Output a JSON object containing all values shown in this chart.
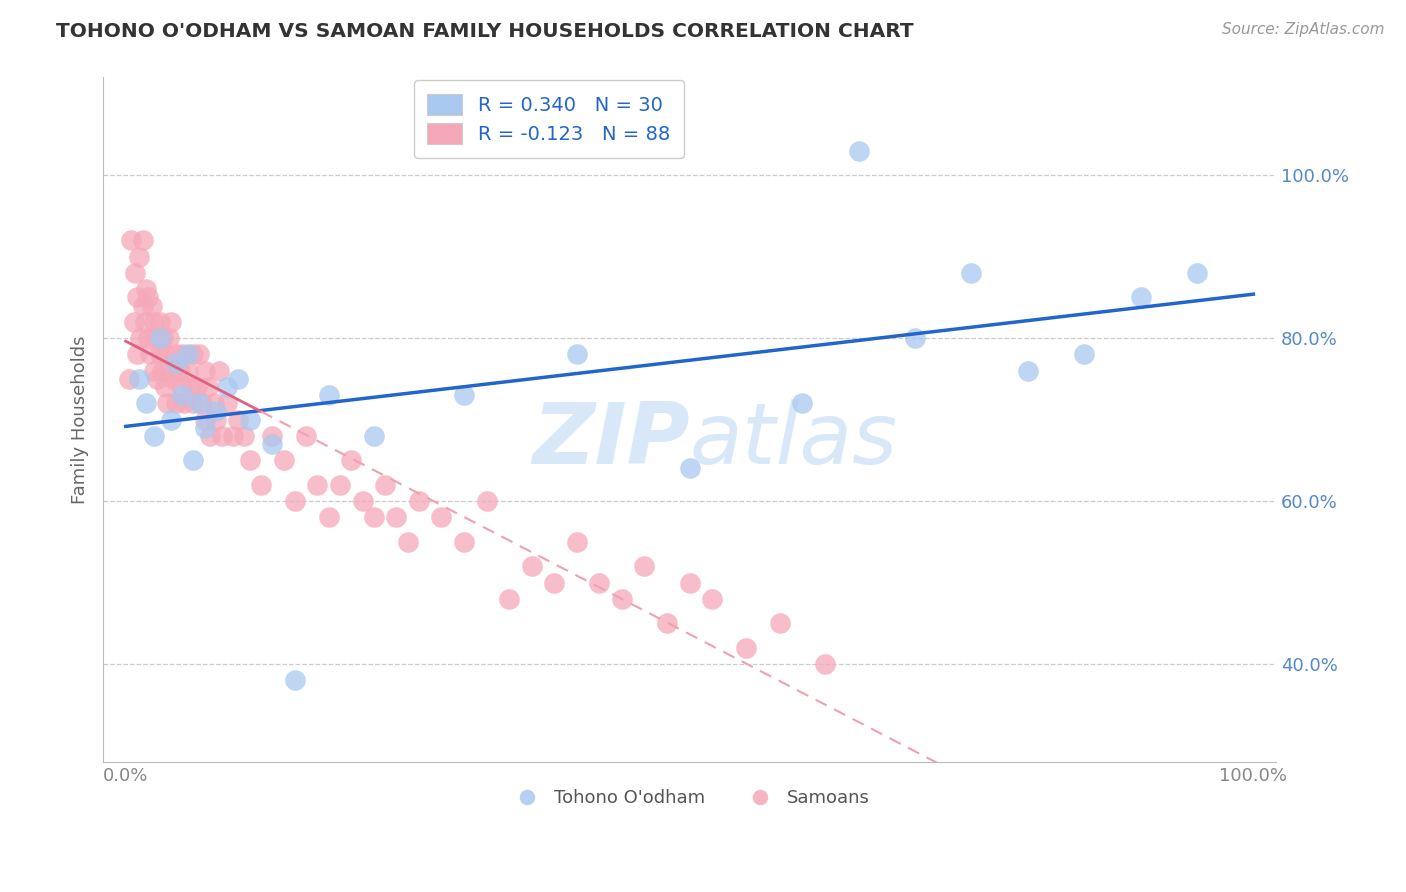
{
  "title": "TOHONO O'ODHAM VS SAMOAN FAMILY HOUSEHOLDS CORRELATION CHART",
  "source": "Source: ZipAtlas.com",
  "ylabel": "Family Households",
  "legend_blue_label": "R = 0.340   N = 30",
  "legend_pink_label": "R = -0.123   N = 88",
  "blue_scatter_color": "#a8c8f0",
  "pink_scatter_color": "#f5a8b8",
  "blue_line_color": "#2266cc",
  "pink_line_color": "#e06080",
  "pink_dashed_color": "#f0a0b0",
  "ytick_color": "#5588cc",
  "xtick_color": "#888888",
  "grid_color": "#cccccc",
  "watermark_color": "#d8e8f8",
  "tohono_x": [
    1.2,
    1.8,
    2.5,
    3.0,
    4.0,
    4.5,
    5.0,
    5.5,
    6.0,
    6.5,
    7.0,
    8.0,
    9.0,
    10.0,
    11.0,
    13.0,
    15.0,
    18.0,
    22.0,
    30.0,
    40.0,
    50.0,
    60.0,
    65.0,
    70.0,
    75.0,
    80.0,
    85.0,
    90.0,
    95.0
  ],
  "tohono_y": [
    75.0,
    72.0,
    68.0,
    80.0,
    70.0,
    77.0,
    73.0,
    78.0,
    65.0,
    72.0,
    69.0,
    71.0,
    74.0,
    75.0,
    70.0,
    67.0,
    38.0,
    73.0,
    68.0,
    73.0,
    78.0,
    64.0,
    72.0,
    103.0,
    80.0,
    88.0,
    76.0,
    78.0,
    85.0,
    88.0
  ],
  "samoan_x": [
    0.3,
    0.5,
    0.7,
    0.8,
    1.0,
    1.0,
    1.2,
    1.3,
    1.5,
    1.5,
    1.7,
    1.8,
    2.0,
    2.0,
    2.2,
    2.3,
    2.5,
    2.5,
    2.7,
    2.8,
    3.0,
    3.0,
    3.2,
    3.3,
    3.5,
    3.5,
    3.7,
    3.8,
    4.0,
    4.0,
    4.2,
    4.5,
    4.5,
    4.8,
    5.0,
    5.0,
    5.2,
    5.5,
    5.8,
    6.0,
    6.0,
    6.3,
    6.5,
    6.8,
    7.0,
    7.0,
    7.3,
    7.5,
    7.8,
    8.0,
    8.3,
    8.5,
    9.0,
    9.5,
    10.0,
    10.5,
    11.0,
    12.0,
    13.0,
    14.0,
    15.0,
    16.0,
    17.0,
    18.0,
    19.0,
    20.0,
    21.0,
    22.0,
    23.0,
    24.0,
    25.0,
    26.0,
    28.0,
    30.0,
    32.0,
    34.0,
    36.0,
    38.0,
    40.0,
    42.0,
    44.0,
    46.0,
    48.0,
    50.0,
    52.0,
    55.0,
    58.0,
    62.0
  ],
  "samoan_y": [
    75.0,
    92.0,
    82.0,
    88.0,
    78.0,
    85.0,
    90.0,
    80.0,
    84.0,
    92.0,
    82.0,
    86.0,
    80.0,
    85.0,
    78.0,
    84.0,
    76.0,
    82.0,
    80.0,
    75.0,
    78.0,
    82.0,
    76.0,
    80.0,
    74.0,
    78.0,
    72.0,
    80.0,
    76.0,
    82.0,
    75.0,
    78.0,
    72.0,
    76.0,
    74.0,
    78.0,
    72.0,
    76.0,
    74.0,
    72.0,
    78.0,
    74.0,
    78.0,
    72.0,
    76.0,
    70.0,
    74.0,
    68.0,
    72.0,
    70.0,
    76.0,
    68.0,
    72.0,
    68.0,
    70.0,
    68.0,
    65.0,
    62.0,
    68.0,
    65.0,
    60.0,
    68.0,
    62.0,
    58.0,
    62.0,
    65.0,
    60.0,
    58.0,
    62.0,
    58.0,
    55.0,
    60.0,
    58.0,
    55.0,
    60.0,
    48.0,
    52.0,
    50.0,
    55.0,
    50.0,
    48.0,
    52.0,
    45.0,
    50.0,
    48.0,
    42.0,
    45.0,
    40.0
  ]
}
